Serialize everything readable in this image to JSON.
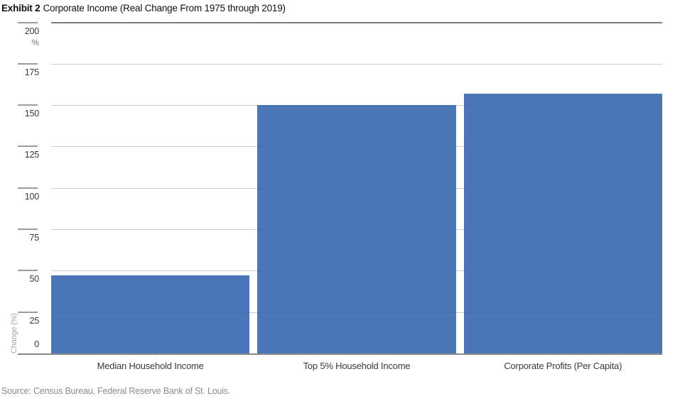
{
  "header": {
    "exhibit_label": "Exhibit 2",
    "title": "Corporate Income (Real Change From 1975 through 2019)"
  },
  "chart_data": {
    "type": "bar",
    "title": "Exhibit 2 Corporate Income (Real Change From 1975 through 2019)",
    "categories": [
      "Median Household Income",
      "Top 5% Household Income",
      "Corporate Profits (Per Capita)"
    ],
    "values": [
      47,
      150,
      157
    ],
    "xlabel": "",
    "ylabel": "Change (%)",
    "y_unit_label": "%",
    "ylim": [
      0,
      200
    ],
    "ytick_step": 25,
    "ytick_labels": [
      "0",
      "25",
      "50",
      "75",
      "100",
      "125",
      "150",
      "175",
      "200"
    ],
    "grid": true,
    "gridlines": "horizontal",
    "legend": "none",
    "bar_color": "#4a76b8"
  },
  "colors": {
    "bar": "#4a76b8",
    "gridline": "#d9d9d9",
    "top_border": "#7d7d7d",
    "baseline": "#8a8a8a",
    "tick_line": "#9b9b9b",
    "tick_label": "#3a3a3a",
    "muted_text": "#8c8c8c",
    "background": "#ffffff"
  },
  "footer": {
    "source": "Source: Census Bureau, Federal Reserve Bank of St. Louis."
  }
}
